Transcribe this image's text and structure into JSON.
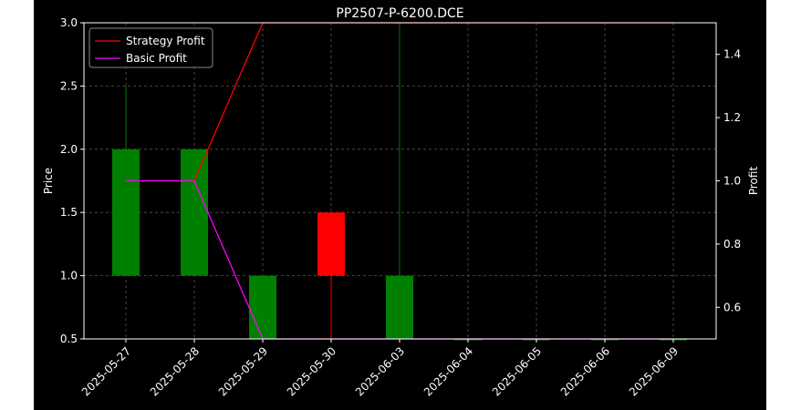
{
  "chart_data": {
    "type": "candlestick",
    "title": "PP2507-P-6200.DCE",
    "xlabel": "",
    "ylabel": "Price",
    "y2label": "Profit",
    "categories": [
      "2025-05-27",
      "2025-05-28",
      "2025-05-29",
      "2025-05-30",
      "2025-06-03",
      "2025-06-04",
      "2025-06-05",
      "2025-06-06",
      "2025-06-09"
    ],
    "ylim": [
      0.5,
      3.0
    ],
    "y2lim": [
      0.5,
      1.5
    ],
    "yticks": [
      "0.5",
      "1.0",
      "1.5",
      "2.0",
      "2.5",
      "3.0"
    ],
    "y2ticks": [
      "0.6",
      "0.8",
      "1.0",
      "1.2",
      "1.4"
    ],
    "grid": true,
    "legend_position": "top-left",
    "candles": [
      {
        "date": "2025-05-27",
        "open": 1.0,
        "close": 2.0,
        "high": 2.5,
        "low": 1.0
      },
      {
        "date": "2025-05-28",
        "open": 1.0,
        "close": 2.0,
        "high": 2.0,
        "low": 1.0
      },
      {
        "date": "2025-05-29",
        "open": 0.5,
        "close": 1.0,
        "high": 1.0,
        "low": 0.5
      },
      {
        "date": "2025-05-30",
        "open": 1.5,
        "close": 1.0,
        "high": 1.5,
        "low": 0.5
      },
      {
        "date": "2025-06-03",
        "open": 0.5,
        "close": 1.0,
        "high": 3.0,
        "low": 0.5
      },
      {
        "date": "2025-06-04",
        "open": 0.5,
        "close": 0.5,
        "high": 0.5,
        "low": 0.5
      },
      {
        "date": "2025-06-05",
        "open": 0.5,
        "close": 0.5,
        "high": 0.5,
        "low": 0.5
      },
      {
        "date": "2025-06-06",
        "open": 0.5,
        "close": 0.5,
        "high": 0.5,
        "low": 0.5
      },
      {
        "date": "2025-06-09",
        "open": 0.5,
        "close": 0.5,
        "high": 0.5,
        "low": 0.5
      }
    ],
    "series": [
      {
        "name": "Strategy Profit",
        "axis": "right",
        "color": "#ff0000",
        "values": [
          1.0,
          1.0,
          1.5,
          1.5,
          1.5,
          1.5,
          1.5,
          1.5,
          1.5
        ]
      },
      {
        "name": "Basic Profit",
        "axis": "right",
        "color": "#ff00ff",
        "values": [
          1.0,
          1.0,
          0.5,
          0.5,
          0.5,
          0.5,
          0.5,
          0.5,
          0.5
        ]
      }
    ],
    "colors": {
      "up": "#008000",
      "down": "#ff0000",
      "background": "#000000",
      "grid": "#555555"
    }
  }
}
